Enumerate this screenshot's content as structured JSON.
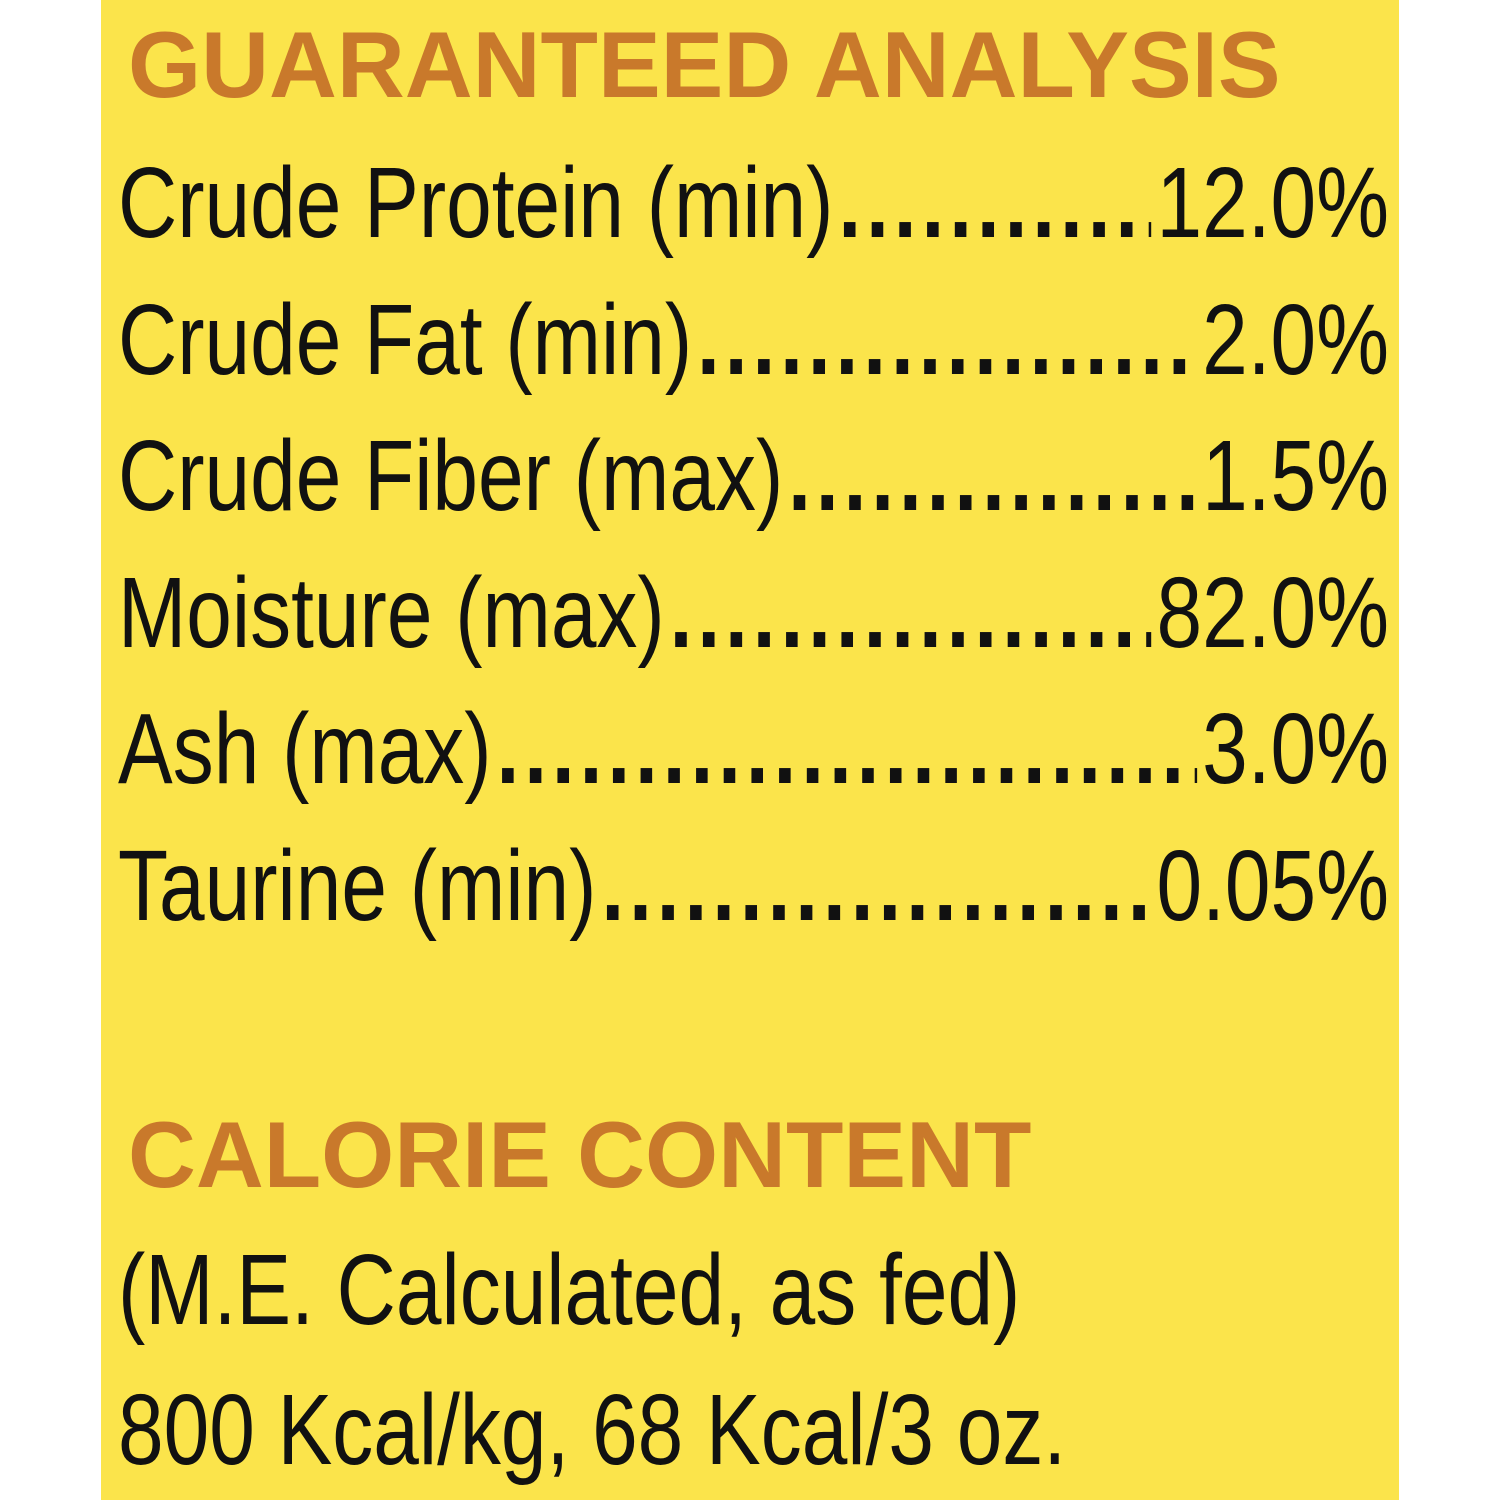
{
  "guaranteed_analysis": {
    "title": "GUARANTEED ANALYSIS",
    "rows": [
      {
        "label": "Crude Protein (min)",
        "value": "12.0%"
      },
      {
        "label": "Crude Fat (min)",
        "value": "2.0%"
      },
      {
        "label": "Crude Fiber (max)",
        "value": "1.5%"
      },
      {
        "label": "Moisture (max)",
        "value": "82.0%"
      },
      {
        "label": "Ash (max)",
        "value": "3.0%"
      },
      {
        "label": "Taurine (min)",
        "value": "0.05%"
      }
    ]
  },
  "calorie_content": {
    "title": "CALORIE CONTENT",
    "lines": [
      "(M.E. Calculated, as fed)",
      "800 Kcal/kg, 68 Kcal/3 oz."
    ]
  },
  "colors": {
    "background": "#fbe44b",
    "heading": "#c9792b",
    "text": "#111111"
  }
}
